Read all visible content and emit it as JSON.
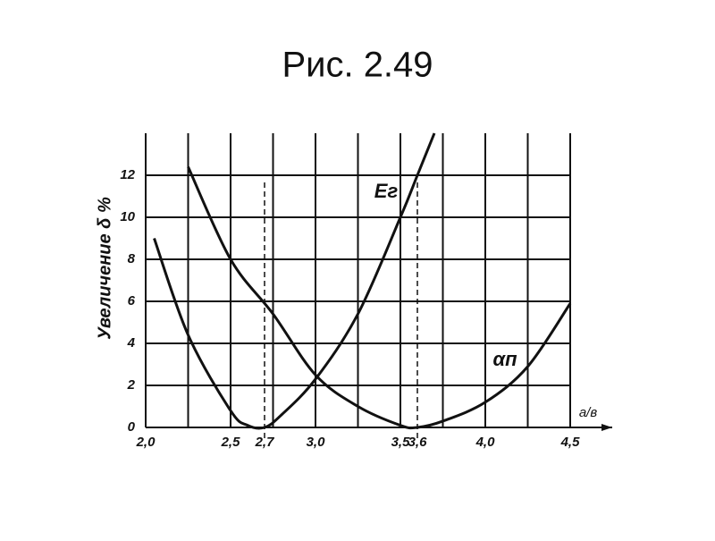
{
  "chart_data": {
    "type": "line",
    "title": "Рис. 2.49",
    "ylabel": "Увеличение δ %",
    "xlabel": "a/в",
    "xlim": [
      2.0,
      4.5
    ],
    "ylim": [
      0,
      14
    ],
    "xticks": [
      {
        "value": 2.0,
        "label": "2,0"
      },
      {
        "value": 2.5,
        "label": "2,5"
      },
      {
        "value": 2.7,
        "label": "2,7"
      },
      {
        "value": 3.0,
        "label": "3,0"
      },
      {
        "value": 3.5,
        "label": "3,5"
      },
      {
        "value": 3.6,
        "label": "3,6"
      },
      {
        "value": 4.0,
        "label": "4,0"
      },
      {
        "value": 4.5,
        "label": "4,5"
      }
    ],
    "yticks": [
      0,
      2,
      4,
      6,
      8,
      10,
      12
    ],
    "xgrid": [
      2.0,
      2.25,
      2.5,
      2.75,
      3.0,
      3.25,
      3.5,
      3.75,
      4.0,
      4.25,
      4.5
    ],
    "dashed_vlines": [
      2.7,
      3.6
    ],
    "grid": true,
    "series": [
      {
        "name": "Eг",
        "color": "#111111",
        "x": [
          2.05,
          2.25,
          2.5,
          2.6,
          2.7,
          2.8,
          3.0,
          3.25,
          3.5,
          3.6,
          3.7
        ],
        "values": [
          9,
          4.4,
          0.8,
          0.1,
          0,
          0.6,
          2.3,
          5.4,
          10,
          12,
          14
        ]
      },
      {
        "name": "αп",
        "color": "#111111",
        "x": [
          2.25,
          2.5,
          2.75,
          3.0,
          3.25,
          3.5,
          3.6,
          3.75,
          4.0,
          4.25,
          4.5
        ],
        "values": [
          12.4,
          8,
          5.4,
          2.5,
          1.0,
          0.1,
          0,
          0.3,
          1.2,
          2.9,
          5.9
        ]
      }
    ]
  }
}
